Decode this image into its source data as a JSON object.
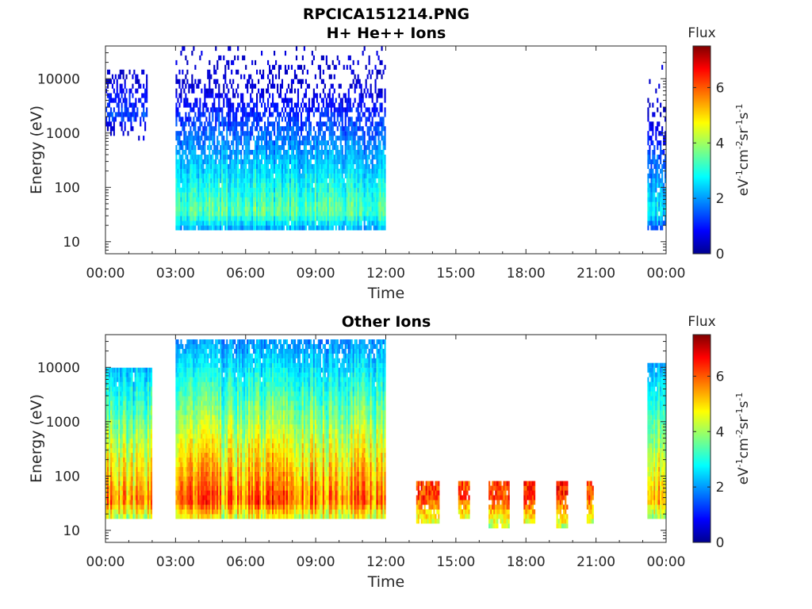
{
  "figure_title": "RPCICA151214.PNG",
  "colors": {
    "axis": "#262626",
    "background": "#ffffff",
    "colormap": [
      "#00008f",
      "#0000ff",
      "#00ffff",
      "#ffff00",
      "#ff0000",
      "#800000"
    ]
  },
  "chart_data": [
    {
      "type": "heatmap",
      "title": "H+ He++ Ions",
      "xlabel": "Time",
      "ylabel": "Energy (eV)",
      "xlim": [
        "00:00",
        "24:00"
      ],
      "x_ticks": [
        "00:00",
        "03:00",
        "06:00",
        "09:00",
        "12:00",
        "15:00",
        "18:00",
        "21:00",
        "00:00"
      ],
      "yscale": "log",
      "ylim": [
        6,
        40000
      ],
      "y_ticks": [
        10,
        100,
        1000,
        10000
      ],
      "y_tick_labels": [
        "10",
        "100",
        "1000",
        "10000"
      ],
      "colorbar": {
        "label": "Flux",
        "unit": "eV^-1 cm^-2 sr^-1 s^-1",
        "min": 0,
        "max": 7.5,
        "ticks": [
          "0",
          "2",
          "4",
          "6"
        ]
      },
      "segments": [
        {
          "start_hour": 0.0,
          "end_hour": 1.8,
          "emin": 500,
          "emax": 15000,
          "peak_energy": 2000,
          "peak_flux": 1.5
        },
        {
          "start_hour": 3.0,
          "end_hour": 12.0,
          "emin": 15,
          "emax": 40000,
          "peak_energy": 35,
          "peak_flux": 3.8
        },
        {
          "start_hour": 23.2,
          "end_hour": 24.0,
          "emin": 15,
          "emax": 30000,
          "peak_energy": 35,
          "peak_flux": 3.0
        }
      ]
    },
    {
      "type": "heatmap",
      "title": "Other Ions",
      "xlabel": "Time",
      "ylabel": "Energy (eV)",
      "xlim": [
        "00:00",
        "24:00"
      ],
      "x_ticks": [
        "00:00",
        "03:00",
        "06:00",
        "09:00",
        "12:00",
        "15:00",
        "18:00",
        "21:00",
        "00:00"
      ],
      "yscale": "log",
      "ylim": [
        6,
        40000
      ],
      "y_ticks": [
        10,
        100,
        1000,
        10000
      ],
      "y_tick_labels": [
        "10",
        "100",
        "1000",
        "10000"
      ],
      "colorbar": {
        "label": "Flux",
        "unit": "eV^-1 cm^-2 sr^-1 s^-1",
        "min": 0,
        "max": 7.5,
        "ticks": [
          "0",
          "2",
          "4",
          "6"
        ]
      },
      "segments": [
        {
          "start_hour": 0.0,
          "end_hour": 2.0,
          "emin": 15,
          "emax": 10000,
          "peak_energy": 35,
          "peak_flux": 6.0
        },
        {
          "start_hour": 3.0,
          "end_hour": 12.0,
          "emin": 15,
          "emax": 30000,
          "peak_energy": 35,
          "peak_flux": 6.3
        },
        {
          "start_hour": 13.3,
          "end_hour": 14.3,
          "emin": 14,
          "emax": 80,
          "peak_energy": 40,
          "peak_flux": 6.8
        },
        {
          "start_hour": 15.1,
          "end_hour": 15.6,
          "emin": 16,
          "emax": 80,
          "peak_energy": 40,
          "peak_flux": 6.6
        },
        {
          "start_hour": 16.4,
          "end_hour": 17.3,
          "emin": 12,
          "emax": 80,
          "peak_energy": 40,
          "peak_flux": 6.8
        },
        {
          "start_hour": 17.9,
          "end_hour": 18.4,
          "emin": 13,
          "emax": 80,
          "peak_energy": 40,
          "peak_flux": 6.9
        },
        {
          "start_hour": 19.3,
          "end_hour": 19.8,
          "emin": 10,
          "emax": 80,
          "peak_energy": 40,
          "peak_flux": 6.9
        },
        {
          "start_hour": 20.6,
          "end_hour": 20.9,
          "emin": 13,
          "emax": 80,
          "peak_energy": 40,
          "peak_flux": 6.5
        },
        {
          "start_hour": 23.2,
          "end_hour": 24.0,
          "emin": 15,
          "emax": 12000,
          "peak_energy": 35,
          "peak_flux": 6.0
        }
      ]
    }
  ]
}
